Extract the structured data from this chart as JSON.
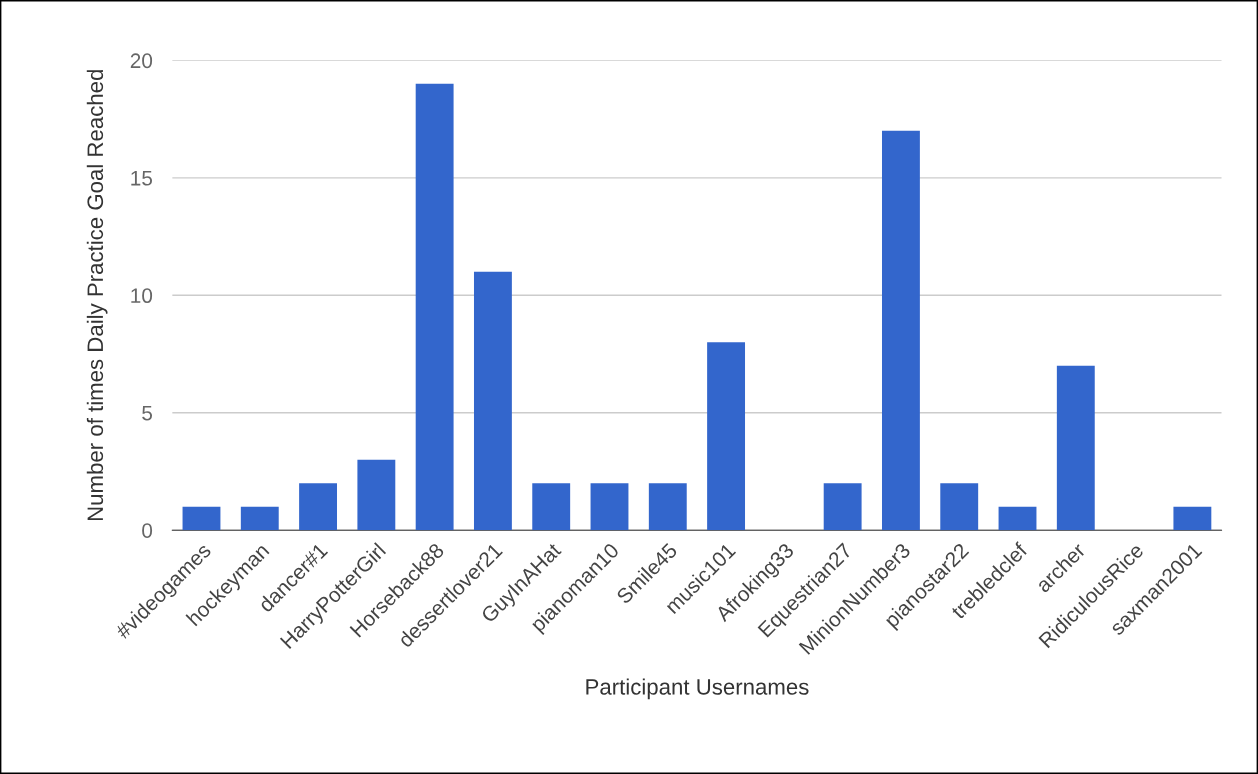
{
  "chart_data": {
    "type": "bar",
    "xlabel": "Participant Usernames",
    "ylabel": "Number of times Daily Practice Goal Reached",
    "categories": [
      "#videogames",
      "hockeyman",
      "dancer#1",
      "HarryPotterGirl",
      "Horseback88",
      "dessertlover21",
      "GuyInAHat",
      "pianoman10",
      "Smile45",
      "music101",
      "Afroking33",
      "Equestrian27",
      "MinionNumber3",
      "pianostar22",
      "trebledclef",
      "archer",
      "RidiculousRice",
      "saxman2001"
    ],
    "values": [
      1,
      1,
      2,
      3,
      19,
      11,
      2,
      2,
      2,
      8,
      0,
      2,
      17,
      2,
      1,
      7,
      0,
      1
    ],
    "color": "#3366cc",
    "ylim": [
      0,
      20
    ],
    "yticks": [
      0,
      5,
      10,
      15,
      20
    ],
    "grid": "y"
  }
}
